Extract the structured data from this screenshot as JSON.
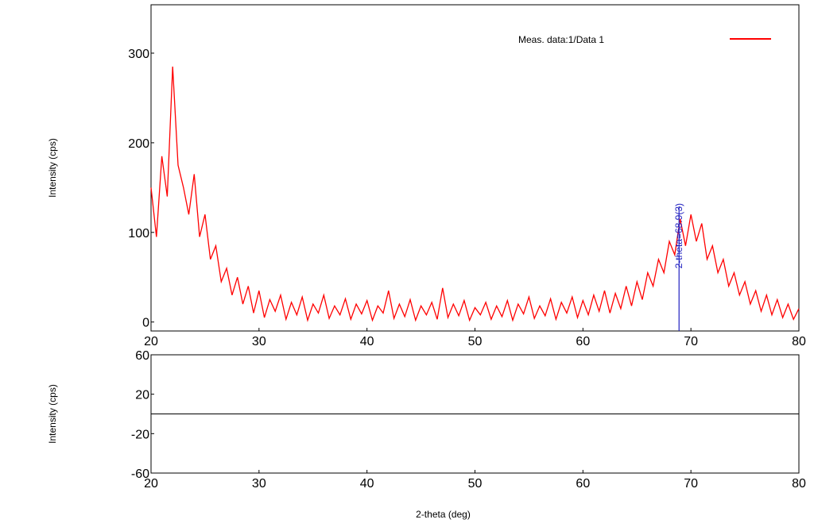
{
  "chart_data": [
    {
      "type": "line",
      "y_label": "Intensity (cps)",
      "xlim": [
        20,
        80
      ],
      "xticks": [
        20,
        30,
        40,
        50,
        60,
        70,
        80
      ],
      "ylim": [
        -10,
        354
      ],
      "yticks": [
        0,
        100,
        200,
        300
      ],
      "legend": "upper right",
      "annotation": {
        "text": "2-theta=68.9(3)",
        "x": 68.9,
        "color": "#2020c0"
      },
      "series": [
        {
          "name": "Meas. data:1/Data 1",
          "color": "#ff0000",
          "x": [
            20,
            20.5,
            21,
            21.5,
            22,
            22.5,
            23,
            23.5,
            24,
            24.5,
            25,
            25.5,
            26,
            26.5,
            27,
            27.5,
            28,
            28.5,
            29,
            29.5,
            30,
            30.5,
            31,
            31.5,
            32,
            32.5,
            33,
            33.5,
            34,
            34.5,
            35,
            35.5,
            36,
            36.5,
            37,
            37.5,
            38,
            38.5,
            39,
            39.5,
            40,
            40.5,
            41,
            41.5,
            42,
            42.5,
            43,
            43.5,
            44,
            44.5,
            45,
            45.5,
            46,
            46.5,
            47,
            47.5,
            48,
            48.5,
            49,
            49.5,
            50,
            50.5,
            51,
            51.5,
            52,
            52.5,
            53,
            53.5,
            54,
            54.5,
            55,
            55.5,
            56,
            56.5,
            57,
            57.5,
            58,
            58.5,
            59,
            59.5,
            60,
            60.5,
            61,
            61.5,
            62,
            62.5,
            63,
            63.5,
            64,
            64.5,
            65,
            65.5,
            66,
            66.5,
            67,
            67.5,
            68,
            68.5,
            69,
            69.5,
            70,
            70.5,
            71,
            71.5,
            72,
            72.5,
            73,
            73.5,
            74,
            74.5,
            75,
            75.5,
            76,
            76.5,
            77,
            77.5,
            78,
            78.5,
            79,
            79.5,
            80
          ],
          "values": [
            150,
            95,
            185,
            140,
            285,
            175,
            150,
            120,
            165,
            95,
            120,
            70,
            85,
            45,
            60,
            30,
            50,
            20,
            40,
            10,
            35,
            5,
            25,
            12,
            30,
            3,
            22,
            8,
            28,
            2,
            20,
            10,
            30,
            4,
            18,
            8,
            26,
            3,
            20,
            9,
            24,
            2,
            18,
            10,
            35,
            4,
            20,
            6,
            25,
            2,
            18,
            8,
            22,
            3,
            38,
            5,
            20,
            7,
            24,
            2,
            16,
            8,
            22,
            3,
            18,
            6,
            24,
            2,
            20,
            9,
            28,
            4,
            18,
            7,
            26,
            3,
            22,
            10,
            28,
            5,
            24,
            8,
            30,
            12,
            35,
            10,
            32,
            15,
            40,
            18,
            45,
            25,
            55,
            40,
            70,
            55,
            90,
            75,
            115,
            85,
            120,
            90,
            110,
            70,
            85,
            55,
            70,
            40,
            55,
            30,
            45,
            20,
            35,
            12,
            30,
            8,
            25,
            5,
            20,
            3,
            15
          ]
        }
      ]
    },
    {
      "type": "line",
      "y_label": "Intensity (cps)",
      "x_label": "2-theta (deg)",
      "xlim": [
        20,
        80
      ],
      "xticks": [
        20,
        30,
        40,
        50,
        60,
        70,
        80
      ],
      "ylim": [
        -60,
        60
      ],
      "yticks": [
        -60,
        -20,
        20,
        60
      ]
    }
  ]
}
